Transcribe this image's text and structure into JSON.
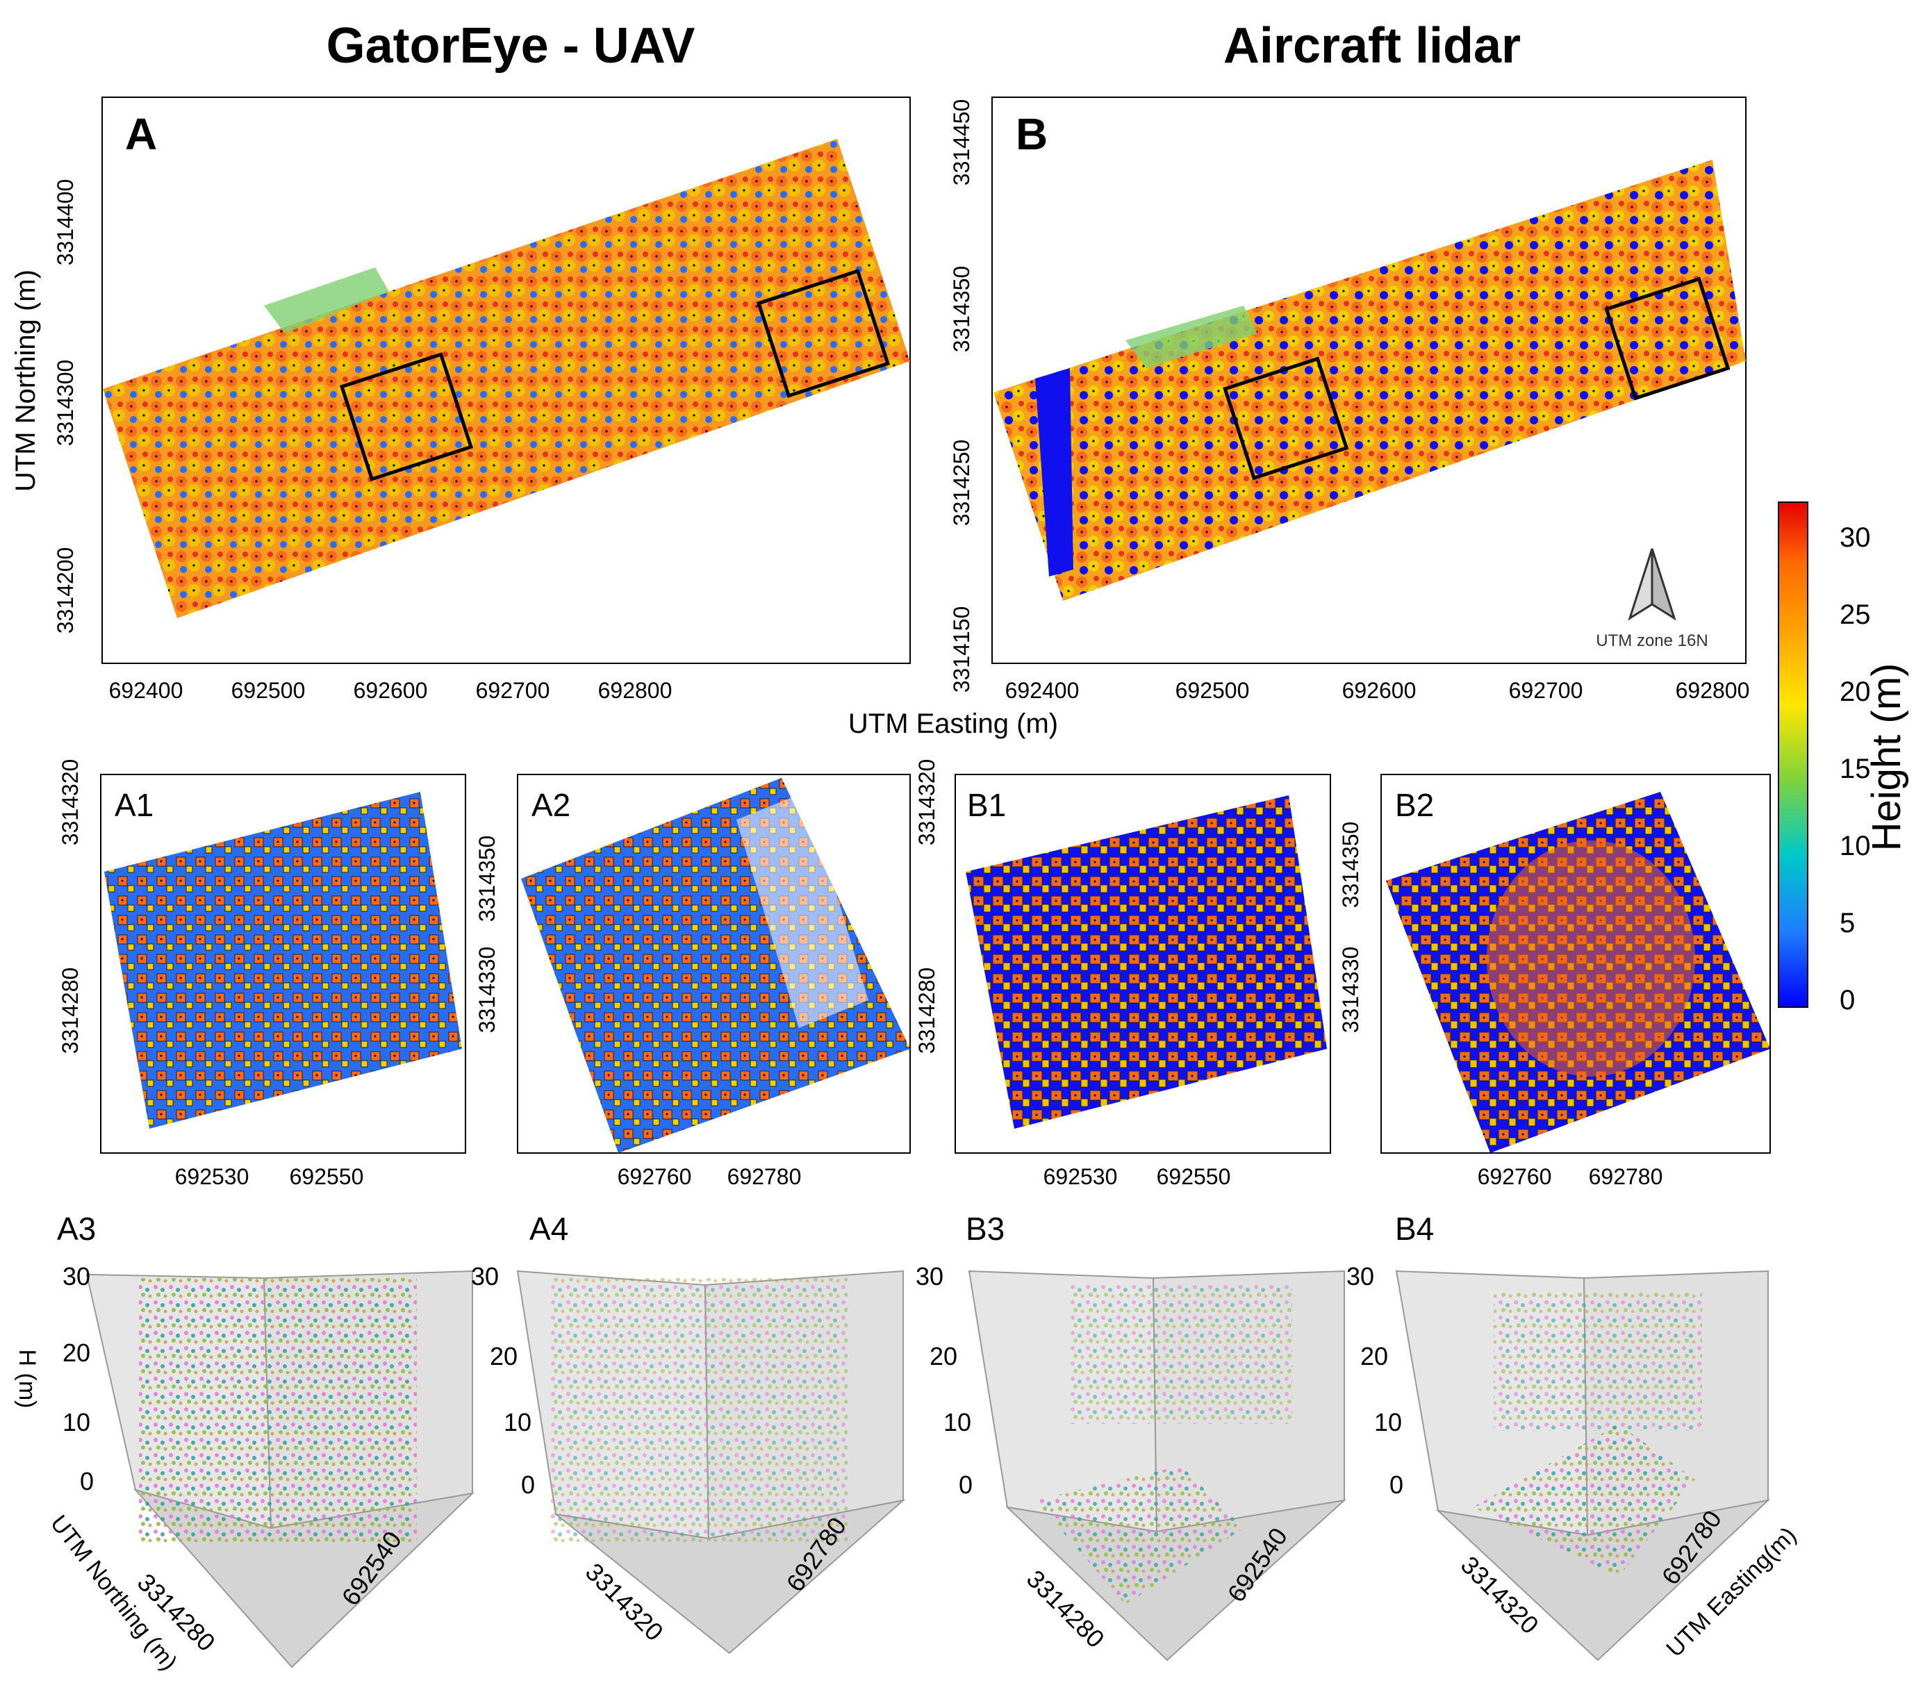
{
  "titles": {
    "left": "GatorEye - UAV",
    "right": "Aircraft lidar"
  },
  "panels": {
    "A": {
      "label": "A",
      "yticks": [
        "3314400",
        "3314300",
        "3314200"
      ],
      "xticks": [
        "692400",
        "692500",
        "692600",
        "692700",
        "692800"
      ]
    },
    "B": {
      "label": "B",
      "yticks": [
        "3314450",
        "3314350",
        "3314250",
        "3314150"
      ],
      "xticks": [
        "692400",
        "692500",
        "692600",
        "692700",
        "692800"
      ]
    },
    "A1": {
      "label": "A1",
      "yticks": [
        "3314320",
        "3314280"
      ],
      "xticks": [
        "692530",
        "692550"
      ]
    },
    "A2": {
      "label": "A2",
      "yticks": [
        "3314350",
        "3314330"
      ],
      "xticks": [
        "692760",
        "692780"
      ]
    },
    "B1": {
      "label": "B1",
      "yticks": [
        "3314320",
        "3314280"
      ],
      "xticks": [
        "692530",
        "692550"
      ]
    },
    "B2": {
      "label": "B2",
      "yticks": [
        "3314350",
        "3314330"
      ],
      "xticks": [
        "692760",
        "692780"
      ]
    },
    "A3": {
      "label": "A3",
      "zticks": [
        "30",
        "20",
        "10",
        "0"
      ],
      "north": "3314280",
      "east": "692540",
      "zlabel": "H (m)",
      "nlabel": "UTM Northing (m)"
    },
    "A4": {
      "label": "A4",
      "zticks": [
        "30",
        "20",
        "10",
        "0"
      ],
      "north": "3314320",
      "east": "692780"
    },
    "B3": {
      "label": "B3",
      "zticks": [
        "30",
        "20",
        "10",
        "0"
      ],
      "north": "3314280",
      "east": "692540"
    },
    "B4": {
      "label": "B4",
      "zticks": [
        "30",
        "20",
        "10",
        "0"
      ],
      "north": "3314320",
      "east": "692780",
      "elabel": "UTM Easting(m)"
    }
  },
  "axes": {
    "ylabel": "UTM Northing (m)",
    "xlabel": "UTM Easting (m)"
  },
  "compass": {
    "text": "UTM zone 16N"
  },
  "colorbar": {
    "label": "Height (m)",
    "ticks": [
      "30",
      "25",
      "20",
      "15",
      "10",
      "5",
      "0"
    ],
    "min": 0,
    "max": 33,
    "colors": [
      "#0000ff",
      "#1e90ff",
      "#00c8c8",
      "#7fd23c",
      "#ffe600",
      "#ffa500",
      "#ff6a00",
      "#e60000"
    ]
  },
  "palette": {
    "tall": "#ff6a1a",
    "mid": "#f5a623",
    "yellow": "#f2e000",
    "green": "#7ccf5a",
    "ground_uav": "#2a6cf0",
    "ground_lidar": "#1010ee",
    "red": "#e8321e"
  }
}
